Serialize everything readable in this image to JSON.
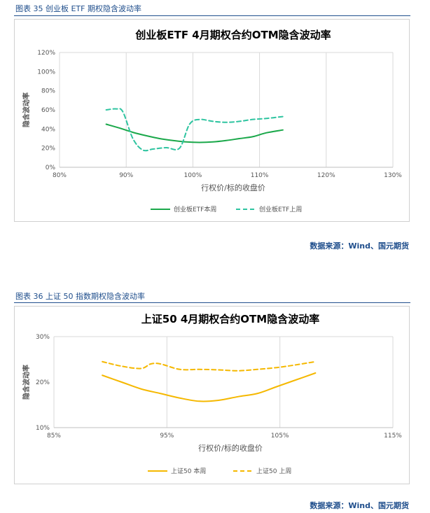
{
  "figure1": {
    "caption": "图表 35  创业板 ETF 期权隐含波动率",
    "source": "数据来源：Wind、国元期货"
  },
  "figure2": {
    "caption": "图表 36  上证 50 指数期权隐含波动率",
    "source": "数据来源：Wind、国元期货"
  },
  "chart_data": [
    {
      "type": "line",
      "title": "创业板ETF  4月期权合约OTM隐含波动率",
      "xlabel": "行权价/标的收盘价",
      "ylabel": "隐含波动率",
      "xlim": [
        0.8,
        1.3
      ],
      "ylim": [
        0,
        1.2
      ],
      "x_ticks": [
        "80%",
        "90%",
        "100%",
        "110%",
        "120%",
        "130%"
      ],
      "y_ticks": [
        "0%",
        "20%",
        "40%",
        "60%",
        "80%",
        "100%",
        "120%"
      ],
      "grid": "vertical",
      "legend": "bottom",
      "series": [
        {
          "name": "创业板ETF本周",
          "color": "#1aa84a",
          "style": "solid",
          "x": [
            0.87,
            0.89,
            0.91,
            0.93,
            0.95,
            0.97,
            0.99,
            1.01,
            1.03,
            1.05,
            1.07,
            1.09,
            1.11,
            1.135
          ],
          "y": [
            0.45,
            0.41,
            0.365,
            0.33,
            0.3,
            0.28,
            0.265,
            0.26,
            0.265,
            0.28,
            0.3,
            0.32,
            0.36,
            0.39
          ]
        },
        {
          "name": "创业板ETF上周",
          "color": "#2ec4a0",
          "style": "dashed",
          "x": [
            0.87,
            0.885,
            0.895,
            0.91,
            0.925,
            0.94,
            0.96,
            0.98,
            0.995,
            1.01,
            1.03,
            1.05,
            1.07,
            1.09,
            1.11,
            1.135
          ],
          "y": [
            0.6,
            0.61,
            0.58,
            0.3,
            0.18,
            0.19,
            0.205,
            0.2,
            0.45,
            0.5,
            0.48,
            0.47,
            0.48,
            0.5,
            0.51,
            0.53
          ]
        }
      ]
    },
    {
      "type": "line",
      "title": "上证50  4月期权合约OTM隐含波动率",
      "xlabel": "行权价/标的收盘价",
      "ylabel": "隐含波动率",
      "xlim": [
        0.85,
        1.2
      ],
      "ylim": [
        0.1,
        0.3
      ],
      "x_ticks": [
        "85%",
        "95%",
        "105%",
        "115%"
      ],
      "y_ticks": [
        "10%",
        "20%",
        "30%"
      ],
      "grid": "vertical",
      "legend": "bottom",
      "series": [
        {
          "name": "上证50 本周",
          "color": "#f5b800",
          "style": "solid",
          "x": [
            0.9,
            0.92,
            0.94,
            0.96,
            0.98,
            1.0,
            1.02,
            1.04,
            1.06,
            1.08,
            1.1,
            1.12
          ],
          "y": [
            0.215,
            0.2,
            0.185,
            0.175,
            0.165,
            0.158,
            0.16,
            0.168,
            0.175,
            0.19,
            0.205,
            0.22
          ]
        },
        {
          "name": "上证50 上周",
          "color": "#f5b800",
          "style": "dashed",
          "x": [
            0.9,
            0.92,
            0.94,
            0.95,
            0.96,
            0.98,
            1.0,
            1.02,
            1.04,
            1.06,
            1.08,
            1.1,
            1.12
          ],
          "y": [
            0.245,
            0.235,
            0.23,
            0.24,
            0.24,
            0.228,
            0.228,
            0.227,
            0.225,
            0.228,
            0.232,
            0.238,
            0.245
          ]
        }
      ]
    }
  ]
}
